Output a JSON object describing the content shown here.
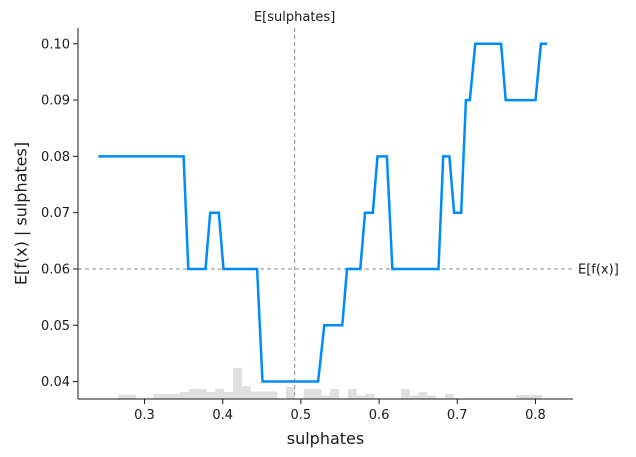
{
  "chart_data": {
    "type": "line",
    "xlabel": "sulphates",
    "ylabel": "E[f(x) | sulphates]",
    "xlim": [
      0.215,
      0.848
    ],
    "ylim": [
      0.0369,
      0.1028
    ],
    "xticks": [
      0.3,
      0.4,
      0.5,
      0.6,
      0.7,
      0.8
    ],
    "xtick_labels": [
      "0.3",
      "0.4",
      "0.5",
      "0.6",
      "0.7",
      "0.8"
    ],
    "yticks": [
      0.04,
      0.05,
      0.06,
      0.07,
      0.08,
      0.09,
      0.1
    ],
    "ytick_labels": [
      "0.04",
      "0.05",
      "0.06",
      "0.07",
      "0.08",
      "0.09",
      "0.10"
    ],
    "reference_lines": {
      "vertical": {
        "x": 0.492,
        "label": "E[sulphates]"
      },
      "horizontal": {
        "y": 0.06,
        "label": "E[f(x)]"
      }
    },
    "colors": {
      "line": "#008bfb",
      "reference": "#999999",
      "histogram": "#cccccc"
    },
    "series": [
      {
        "x": [
          0.241,
          0.35,
          0.356,
          0.378,
          0.384,
          0.395,
          0.401,
          0.444,
          0.451,
          0.522,
          0.53,
          0.553,
          0.559,
          0.576,
          0.582,
          0.592,
          0.598,
          0.61,
          0.617,
          0.676,
          0.682,
          0.69,
          0.696,
          0.705,
          0.711,
          0.716,
          0.723,
          0.739,
          0.756,
          0.762,
          0.8,
          0.807,
          0.815
        ],
        "y": [
          0.08,
          0.08,
          0.06,
          0.06,
          0.07,
          0.07,
          0.06,
          0.06,
          0.04,
          0.04,
          0.05,
          0.05,
          0.06,
          0.06,
          0.07,
          0.07,
          0.08,
          0.08,
          0.06,
          0.06,
          0.08,
          0.08,
          0.07,
          0.07,
          0.09,
          0.09,
          0.1,
          0.1,
          0.1,
          0.09,
          0.09,
          0.1,
          0.1
        ]
      }
    ],
    "histogram": {
      "bin_start": 0.255,
      "bin_width": 0.0113,
      "heights": [
        0.0,
        0.45,
        0.45,
        0.0,
        0.0,
        0.5,
        0.5,
        0.5,
        0.7,
        1.0,
        1.0,
        0.7,
        1.0,
        0.7,
        3.1,
        1.3,
        0.75,
        0.75,
        0.75,
        0.0,
        1.2,
        0.0,
        1.0,
        1.0,
        0.35,
        1.0,
        0.0,
        1.0,
        0.35,
        0.5,
        0.0,
        0.0,
        0.0,
        1.0,
        0.35,
        0.7,
        0.35,
        0.0,
        0.5,
        0.0,
        0.0,
        0.0,
        0.0,
        0.0,
        0.0,
        0.0,
        0.4,
        0.4,
        0.4
      ]
    }
  }
}
